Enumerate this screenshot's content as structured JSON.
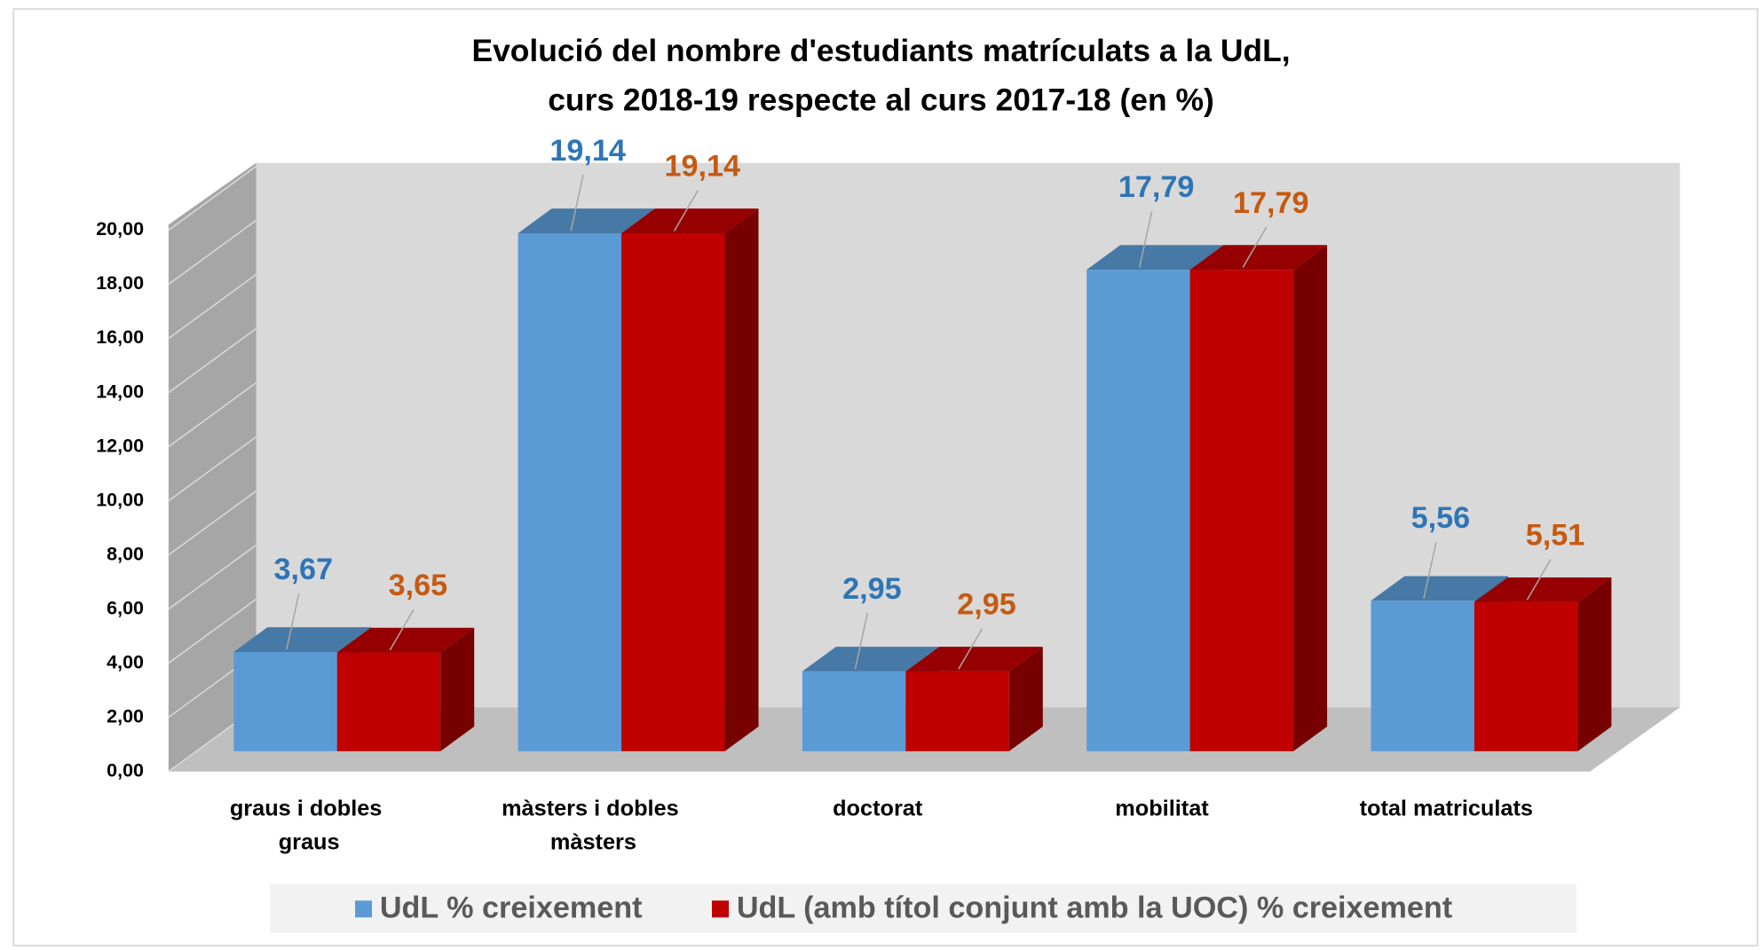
{
  "chart_data": {
    "type": "bar3d",
    "title": [
      "Evolució del nombre d'estudiants matrículats a la UdL,",
      "curs 2018-19 respecte al curs 2017-18 (en %)"
    ],
    "categories": [
      "graus i dobles graus",
      "màsters i dobles màsters",
      "doctorat",
      "mobilitat",
      "total matriculats"
    ],
    "series": [
      {
        "name": "UdL % creixement",
        "color": "#5b9bd5",
        "label_color": "#2e75b6",
        "values": [
          3.67,
          19.14,
          2.95,
          17.79,
          5.56
        ],
        "value_labels": [
          "3,67",
          "19,14",
          "2,95",
          "17,79",
          "5,56"
        ]
      },
      {
        "name": "UdL (amb títol conjunt amb la UOC) % creixement",
        "color": "#c00000",
        "label_color": "#c55a11",
        "values": [
          3.65,
          19.14,
          2.95,
          17.79,
          5.51
        ],
        "value_labels": [
          "3,65",
          "19,14",
          "2,95",
          "17,79",
          "5,51"
        ]
      }
    ],
    "ylim": [
      0,
      20
    ],
    "yticks": [
      {
        "value": 0,
        "label": "0,00"
      },
      {
        "value": 2,
        "label": "2,00"
      },
      {
        "value": 4,
        "label": "4,00"
      },
      {
        "value": 6,
        "label": "6,00"
      },
      {
        "value": 8,
        "label": "8,00"
      },
      {
        "value": 10,
        "label": "10,00"
      },
      {
        "value": 12,
        "label": "12,00"
      },
      {
        "value": 14,
        "label": "14,00"
      },
      {
        "value": 16,
        "label": "16,00"
      },
      {
        "value": 18,
        "label": "18,00"
      },
      {
        "value": 20,
        "label": "20,00"
      }
    ],
    "grid": true,
    "legend": "bottom"
  }
}
